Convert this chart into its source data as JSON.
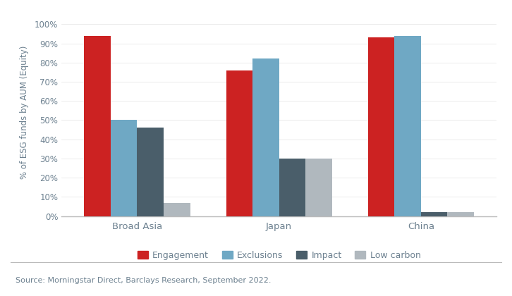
{
  "categories": [
    "Broad Asia",
    "Japan",
    "China"
  ],
  "series": {
    "Engagement": [
      0.94,
      0.76,
      0.93
    ],
    "Exclusions": [
      0.5,
      0.82,
      0.94
    ],
    "Impact": [
      0.46,
      0.3,
      0.02
    ],
    "Low carbon": [
      0.07,
      0.3,
      0.02
    ]
  },
  "colors": {
    "Engagement": "#cc2222",
    "Exclusions": "#6fa8c4",
    "Impact": "#4a5e6a",
    "Low carbon": "#b0b8be"
  },
  "ylabel": "% of ESG funds by AUM (Equity)",
  "yticks": [
    0,
    0.1,
    0.2,
    0.3,
    0.4,
    0.5,
    0.6,
    0.7,
    0.8,
    0.9,
    1.0
  ],
  "ytick_labels": [
    "0%",
    "10%",
    "20%",
    "30%",
    "40%",
    "50%",
    "60%",
    "70%",
    "80%",
    "90%",
    "100%"
  ],
  "ylim": [
    0,
    1.08
  ],
  "source_text": "Source: Morningstar Direct, Barclays Research, September 2022.",
  "bar_width": 0.14,
  "group_positions": [
    0.25,
    1.0,
    1.75
  ],
  "background_color": "#ffffff",
  "axis_color": "#bbbbbb",
  "text_color": "#6d8190",
  "legend_order": [
    "Engagement",
    "Exclusions",
    "Impact",
    "Low carbon"
  ]
}
